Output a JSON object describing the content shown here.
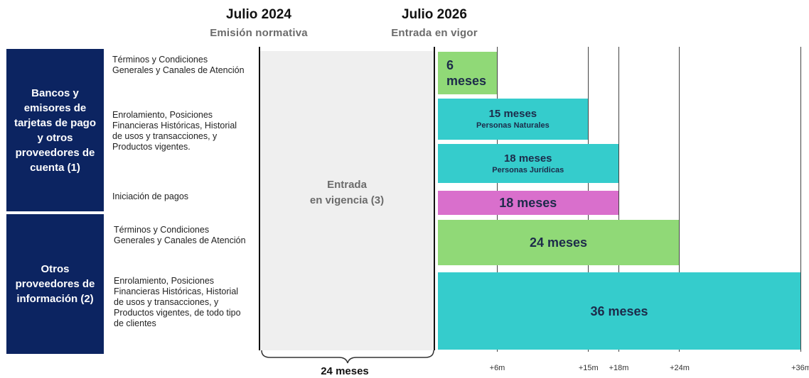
{
  "header": {
    "left": {
      "year": "Julio 2024",
      "subtitle": "Emisión normativa"
    },
    "right": {
      "year": "Julio 2026",
      "subtitle": "Entrada en vigor"
    }
  },
  "groups": [
    {
      "label": "Bancos y emisores de tarjetas de pago y otros proveedores de cuenta (1)"
    },
    {
      "label": "Otros proveedores de información (2)"
    }
  ],
  "rows": [
    {
      "desc": "Términos y Condiciones Generales y Canales de Atención",
      "bar_label": "6 meses",
      "bar_sub": "",
      "months": 6,
      "color": "#90d977"
    },
    {
      "desc": "Enrolamiento, Posiciones Financieras Históricas, Historial de usos y transacciones, y Productos vigentes.",
      "bar_label": "15 meses",
      "bar_sub": "Personas Naturales",
      "months": 15,
      "color": "#35cccc"
    },
    {
      "desc": "",
      "bar_label": "18 meses",
      "bar_sub": "Personas Jurídicas",
      "months": 18,
      "color": "#35cccc"
    },
    {
      "desc": "Iniciación de pagos",
      "bar_label": "18 meses",
      "bar_sub": "",
      "months": 18,
      "color": "#d96fcc"
    },
    {
      "desc": "Términos y Condiciones Generales y Canales de Atención",
      "bar_label": "24 meses",
      "bar_sub": "",
      "months": 24,
      "color": "#90d977"
    },
    {
      "desc": "Enrolamiento, Posiciones Financieras Históricas, Historial de usos y transacciones, y Productos vigentes, de todo tipo de clientes",
      "bar_label": "36 meses",
      "bar_sub": "",
      "months": 36,
      "color": "#35cccc"
    }
  ],
  "band": {
    "label_line1": "Entrada",
    "label_line2": "en vigencia (3)"
  },
  "ticks": [
    {
      "label": "+6m",
      "months": 6
    },
    {
      "label": "+15m",
      "months": 15
    },
    {
      "label": "+18m",
      "months": 18
    },
    {
      "label": "+24m",
      "months": 24
    },
    {
      "label": "+36m",
      "months": 36
    }
  ],
  "brace_label": "24 meses"
}
